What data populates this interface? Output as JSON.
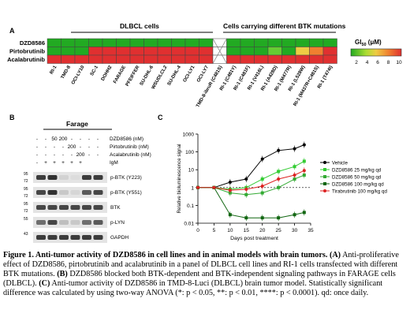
{
  "panelA": {
    "letter": "A",
    "group1_title": "DLBCL cells",
    "group2_title": "Cells carrying different BTK mutations",
    "row_labels": [
      "DZD8586",
      "Pirtobrutinib",
      "Acalabrutinib"
    ],
    "col_labels": [
      "RI-1",
      "TMD-8",
      "OCI-LY10",
      "SC-1",
      "DOHH2",
      "FARAGE",
      "PFEIFFER",
      "SU-DHL-6",
      "WSUDLCL2",
      "SU-DHL-4",
      "OCI-LY1",
      "OCI-LY7",
      "TMD-8-ibruR (C481S)",
      "RI-1 (C481Y)",
      "RI-1 (C481F)",
      "RI-1 (V416L)",
      "RI-1 (A428D)",
      "RI-1 (M477R)",
      "RI-1 (L528W)",
      "RI-1 (M437R+C481S)",
      "RI-1 (T474I)"
    ],
    "legend_title": "GI",
    "legend_sub": "50",
    "legend_unit": " (μM)",
    "legend_ticks": [
      "2",
      "4",
      "6",
      "8",
      "10"
    ],
    "colors": {
      "green": "#22aa22",
      "lightgreen": "#66cc33",
      "yellow": "#eecc44",
      "orange": "#f08030",
      "red": "#e03030",
      "blank": "#ffffff"
    }
  },
  "panelB": {
    "letter": "B",
    "header": "Farage",
    "treat_rows": [
      {
        "label": "DZD8586 (nM)",
        "values": [
          "-",
          "-",
          "50",
          "200",
          "-",
          "-",
          "-",
          "-"
        ]
      },
      {
        "label": "Pirtobrutinib (nM)",
        "values": [
          "-",
          "-",
          "-",
          "-",
          "200",
          "-",
          "-",
          "-"
        ]
      },
      {
        "label": "Acalabrutinib (nM)",
        "values": [
          "-",
          "-",
          "-",
          "-",
          "-",
          "200",
          "-",
          "-"
        ]
      },
      {
        "label": "IgM",
        "values": [
          "-",
          "+",
          "+",
          "+",
          "+",
          "+",
          "",
          ""
        ]
      }
    ],
    "blots": [
      {
        "label": "p-BTK (Y223)",
        "mw_top": "95",
        "mw_bot": "72"
      },
      {
        "label": "p-BTK (Y551)",
        "mw_top": "95",
        "mw_bot": "72"
      },
      {
        "label": "BTK",
        "mw_top": "95",
        "mw_bot": "72"
      },
      {
        "label": "p-LYN",
        "mw_top": "55",
        "mw_bot": ""
      },
      {
        "label": "GAPDH",
        "mw_top": "43",
        "mw_bot": ""
      }
    ]
  },
  "panelC": {
    "letter": "C",
    "xlabel": "Days post treatment",
    "ylabel": "Relative bioluminescence signal",
    "xticks": [
      "0",
      "5",
      "10",
      "15",
      "20",
      "25",
      "30",
      "35"
    ],
    "yticks": [
      "0.01",
      "0.1",
      "1",
      "10",
      "100",
      "1000"
    ]
  },
  "chart_data": {
    "type": "line",
    "x": [
      0,
      5,
      10,
      15,
      20,
      25,
      30,
      35
    ],
    "xlim": [
      0,
      35
    ],
    "ylim": [
      0.01,
      1000
    ],
    "yscale": "log",
    "xlabel": "Days post treatment",
    "ylabel": "Relative bioluminescence signal",
    "series": [
      {
        "name": "Vehicle",
        "color": "#000000",
        "marker": "circle",
        "x": [
          0,
          5,
          10,
          15,
          20,
          25,
          30,
          33
        ],
        "y": [
          1,
          1,
          2,
          3,
          40,
          120,
          150,
          250
        ]
      },
      {
        "name": "DZD8586 25 mg/kg qd",
        "color": "#33cc33",
        "marker": "square",
        "x": [
          0,
          5,
          10,
          15,
          20,
          25,
          30,
          33
        ],
        "y": [
          1,
          1,
          0.8,
          1,
          3,
          8,
          15,
          30
        ]
      },
      {
        "name": "DZD8586 50 mg/kg qd",
        "color": "#33aa33",
        "marker": "square",
        "x": [
          0,
          5,
          10,
          15,
          20,
          25,
          30,
          33
        ],
        "y": [
          1,
          1,
          0.5,
          0.4,
          0.5,
          1,
          3,
          5
        ]
      },
      {
        "name": "DZD8586 100 mg/kg qd",
        "color": "#116611",
        "marker": "square",
        "x": [
          0,
          5,
          10,
          15,
          20,
          25,
          30,
          33
        ],
        "y": [
          1,
          1,
          0.03,
          0.02,
          0.02,
          0.02,
          0.03,
          0.04
        ]
      },
      {
        "name": "Tirabrutinib 100 mg/kg qd",
        "color": "#dd2222",
        "marker": "circle",
        "x": [
          0,
          5,
          10,
          15,
          20,
          25,
          30,
          33
        ],
        "y": [
          1,
          1,
          0.7,
          0.8,
          1.2,
          3,
          5,
          9
        ]
      }
    ],
    "reference_line": 1,
    "legend_position": "right"
  },
  "caption": {
    "title": "Figure 1. Anti-tumor activity of DZD8586 in cell lines and in animal models with brain tumors.",
    "a_label": "(A)",
    "a_text": "Anti-proliferative effect of DZD8586, pirtobrutinib and acalabrutinib in a panel of DLBCL cell lines and RI-1 cells transfected with different BTK mutations.",
    "b_label": "(B)",
    "b_text": "DZD8586 blocked both BTK-dependent and BTK-independent signaling pathways in FARAGE cells (DLBCL).",
    "c_label": "(C)",
    "c_text": "Anti-tumor activity of DZD8586 in TMD-8-Luci (DLBCL) brain tumor model. Statistically significant difference was calculated by using two-way ANOVA (*: p < 0.05, **: p < 0.01, ****: p < 0.0001). qd: once daily."
  }
}
